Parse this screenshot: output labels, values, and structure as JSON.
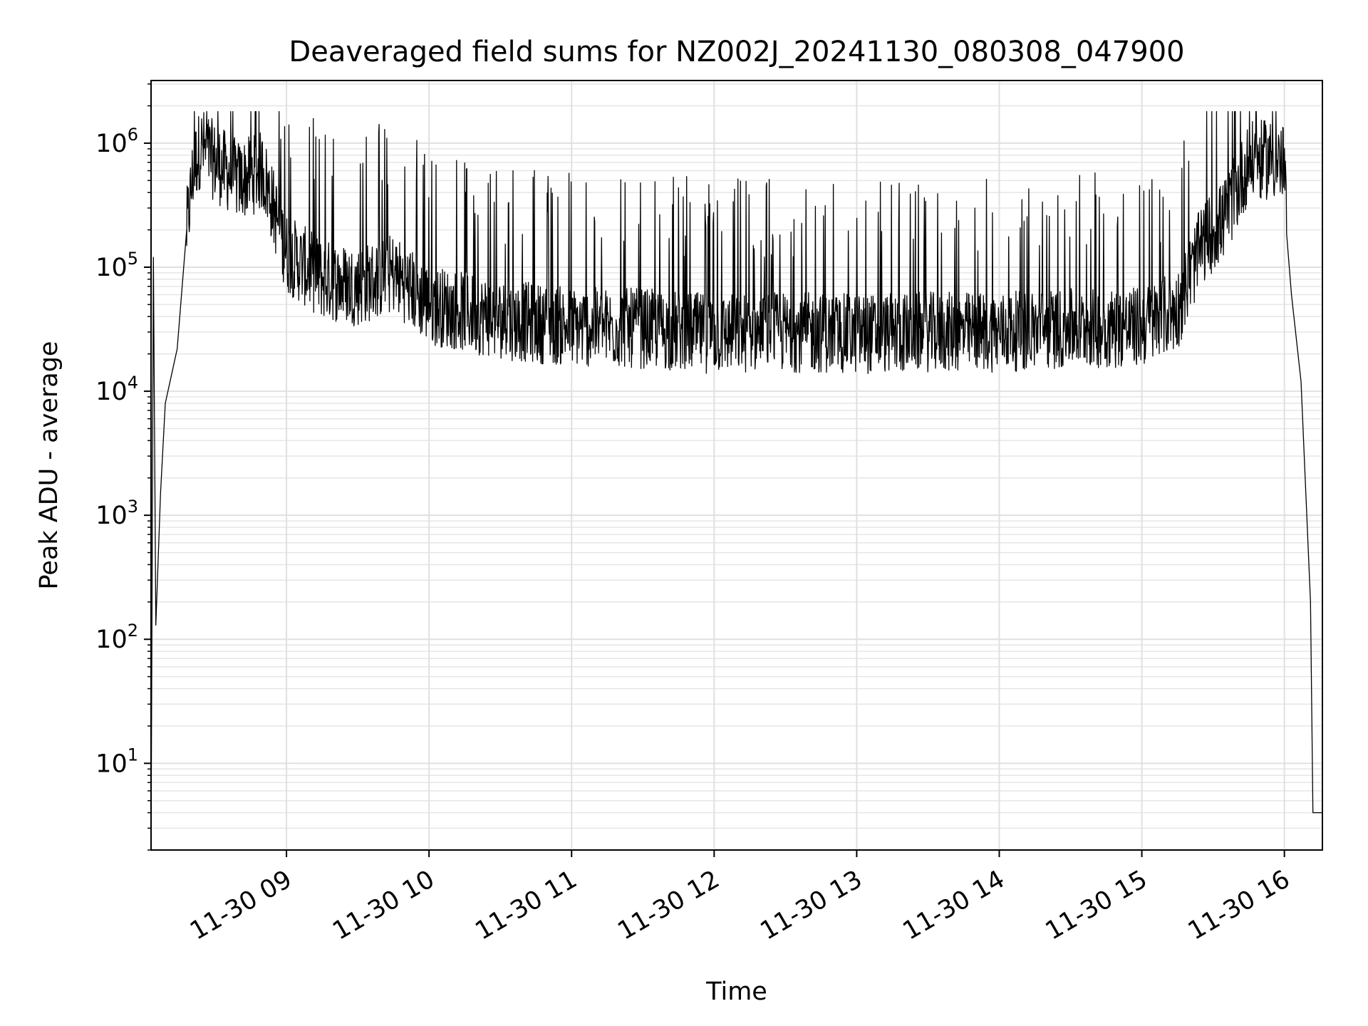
{
  "chart_data": {
    "type": "line",
    "title": "Deaveraged field sums for NZ002J_20241130_080308_047900",
    "xlabel": "Time",
    "ylabel": "Peak ADU - average",
    "yscale": "log",
    "ylim": [
      2,
      3200000
    ],
    "xlim": [
      "2024-11-30 08:03",
      "2024-11-30 16:16"
    ],
    "grid": true,
    "x_ticks": [
      {
        "label": "11-30 09",
        "time": "2024-11-30 09:00"
      },
      {
        "label": "11-30 10",
        "time": "2024-11-30 10:00"
      },
      {
        "label": "11-30 11",
        "time": "2024-11-30 11:00"
      },
      {
        "label": "11-30 12",
        "time": "2024-11-30 12:00"
      },
      {
        "label": "11-30 13",
        "time": "2024-11-30 13:00"
      },
      {
        "label": "11-30 14",
        "time": "2024-11-30 14:00"
      },
      {
        "label": "11-30 15",
        "time": "2024-11-30 15:00"
      },
      {
        "label": "11-30 16",
        "time": "2024-11-30 16:00"
      }
    ],
    "y_ticks": [
      {
        "base": "10",
        "exp": "1",
        "value": 10
      },
      {
        "base": "10",
        "exp": "2",
        "value": 100
      },
      {
        "base": "10",
        "exp": "3",
        "value": 1000
      },
      {
        "base": "10",
        "exp": "4",
        "value": 10000
      },
      {
        "base": "10",
        "exp": "5",
        "value": 100000
      },
      {
        "base": "10",
        "exp": "6",
        "value": 1000000
      }
    ],
    "series": [
      {
        "color": "#000000",
        "points": [
          [
            "2024-11-30 08:03",
            2
          ],
          [
            "2024-11-30 08:04",
            120000
          ],
          [
            "2024-11-30 08:05",
            130
          ],
          [
            "2024-11-30 08:07",
            1500
          ],
          [
            "2024-11-30 08:09",
            8000
          ],
          [
            "2024-11-30 08:11",
            12000
          ],
          [
            "2024-11-30 08:14",
            22000
          ],
          [
            "2024-11-30 08:18",
            200000
          ],
          [
            "2024-11-30 08:21",
            650000
          ],
          [
            "2024-11-30 08:24",
            950000
          ],
          [
            "2024-11-30 08:30",
            700000
          ],
          [
            "2024-11-30 08:40",
            500000
          ],
          [
            "2024-11-30 08:50",
            600000
          ],
          [
            "2024-11-30 09:00",
            130000
          ],
          [
            "2024-11-30 09:15",
            80000
          ],
          [
            "2024-11-30 09:30",
            70000
          ],
          [
            "2024-11-30 09:45",
            90000
          ],
          [
            "2024-11-30 10:00",
            50000
          ],
          [
            "2024-11-30 10:30",
            38000
          ],
          [
            "2024-11-30 11:00",
            33000
          ],
          [
            "2024-11-30 11:30",
            32000
          ],
          [
            "2024-11-30 12:00",
            29000
          ],
          [
            "2024-11-30 12:30",
            30000
          ],
          [
            "2024-11-30 13:00",
            29000
          ],
          [
            "2024-11-30 13:30",
            30000
          ],
          [
            "2024-11-30 14:00",
            30000
          ],
          [
            "2024-11-30 14:30",
            32000
          ],
          [
            "2024-11-30 15:00",
            33000
          ],
          [
            "2024-11-30 15:15",
            45000
          ],
          [
            "2024-11-30 15:25",
            150000
          ],
          [
            "2024-11-30 15:35",
            250000
          ],
          [
            "2024-11-30 15:45",
            700000
          ],
          [
            "2024-11-30 15:55",
            750000
          ],
          [
            "2024-11-30 16:00",
            650000
          ],
          [
            "2024-11-30 16:03",
            60000
          ],
          [
            "2024-11-30 16:07",
            12000
          ],
          [
            "2024-11-30 16:11",
            200
          ],
          [
            "2024-11-30 16:12",
            4
          ],
          [
            "2024-11-30 16:16",
            4
          ]
        ]
      }
    ]
  }
}
